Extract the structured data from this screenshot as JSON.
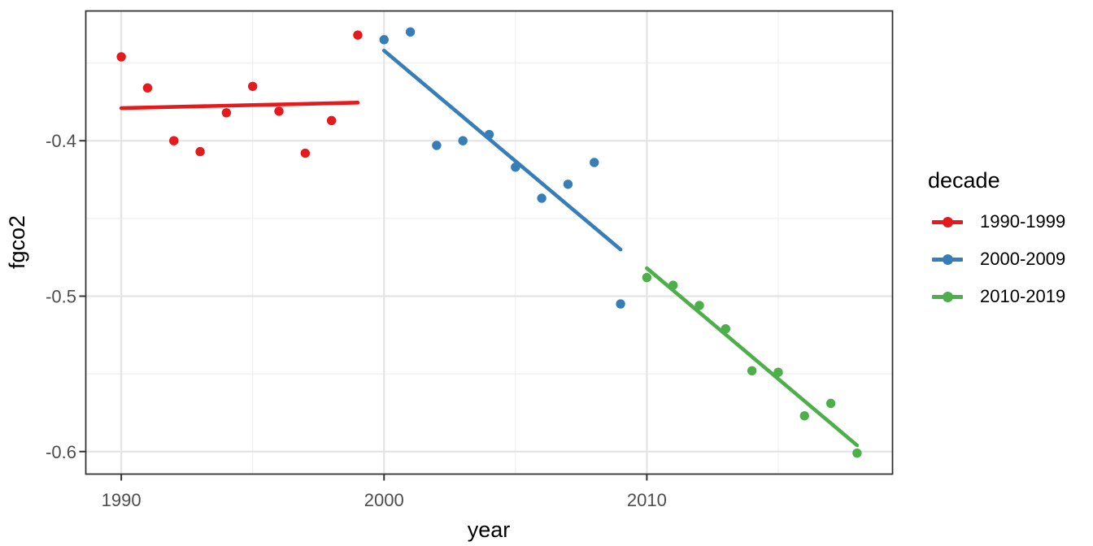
{
  "chart_data": {
    "type": "scatter",
    "title": "",
    "xlabel": "year",
    "ylabel": "fgco2",
    "xlim": [
      1988.65,
      2019.35
    ],
    "ylim": [
      -0.6145,
      -0.3165
    ],
    "grid": "major and minor, light gray on white panel, dark panel border",
    "x_ticks": {
      "values": [
        1990,
        2000,
        2010
      ],
      "labels": [
        "1990",
        "2000",
        "2010"
      ],
      "minor": [
        1995,
        2005,
        2015
      ]
    },
    "y_ticks": {
      "values": [
        -0.4,
        -0.5,
        -0.6
      ],
      "labels": [
        "-0.4",
        "-0.5",
        "-0.6"
      ],
      "minor": [
        -0.35,
        -0.45,
        -0.55
      ]
    },
    "legend": {
      "title": "decade",
      "position": "right"
    },
    "series": [
      {
        "name": "1990-1999",
        "color": "#E41A1C",
        "x": [
          1990,
          1991,
          1992,
          1993,
          1994,
          1995,
          1996,
          1997,
          1998,
          1999
        ],
        "y": [
          -0.346,
          -0.366,
          -0.4,
          -0.407,
          -0.382,
          -0.365,
          -0.381,
          -0.408,
          -0.387,
          -0.332
        ],
        "trend": {
          "x1": 1990,
          "y1": -0.379,
          "x2": 1999,
          "y2": -0.3755
        }
      },
      {
        "name": "2000-2009",
        "color": "#377EB8",
        "x": [
          2000,
          2001,
          2002,
          2003,
          2004,
          2005,
          2006,
          2007,
          2008,
          2009
        ],
        "y": [
          -0.335,
          -0.33,
          -0.403,
          -0.4,
          -0.396,
          -0.417,
          -0.437,
          -0.428,
          -0.414,
          -0.505
        ],
        "trend": {
          "x1": 2000,
          "y1": -0.342,
          "x2": 2009,
          "y2": -0.47
        }
      },
      {
        "name": "2010-2019",
        "color": "#4DAF4A",
        "x": [
          2010,
          2011,
          2012,
          2013,
          2014,
          2015,
          2016,
          2017,
          2018
        ],
        "y": [
          -0.488,
          -0.493,
          -0.506,
          -0.521,
          -0.548,
          -0.549,
          -0.577,
          -0.569,
          -0.601
        ],
        "trend": {
          "x1": 2010,
          "y1": -0.482,
          "x2": 2018,
          "y2": -0.596
        }
      }
    ]
  },
  "style": {
    "panel_border_color": "#333333",
    "tick_color": "#333333",
    "tick_label_color": "#4d4d4d",
    "axis_title_color": "#000000",
    "grid_major_color": "#e4e4e4",
    "grid_minor_color": "#efefef",
    "panel_background": "#ffffff"
  }
}
